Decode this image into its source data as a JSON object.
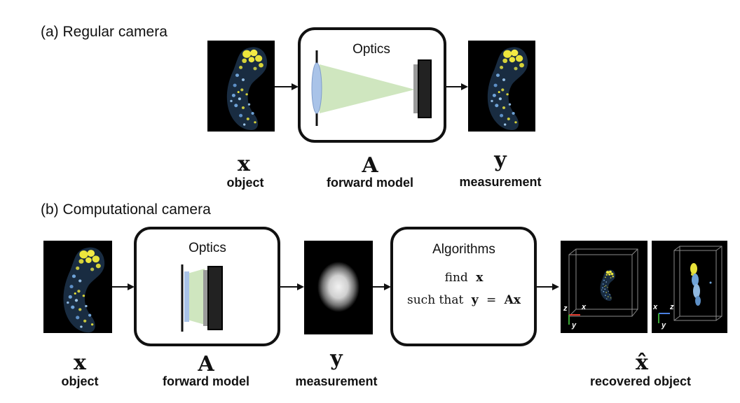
{
  "panel_a": {
    "heading": "(a) Regular camera",
    "optics_title": "Optics",
    "object_symbol": "x",
    "object_label": "object",
    "model_symbol": "A",
    "model_label": "forward model",
    "measurement_symbol": "y",
    "measurement_label": "measurement"
  },
  "panel_b": {
    "heading": "(b) Computational camera",
    "optics_title": "Optics",
    "algorithms_title": "Algorithms",
    "algo_line1_word": "find",
    "algo_line1_var": "x",
    "algo_line2_words": "such that",
    "algo_line2_lhs": "y",
    "algo_line2_eq": "=",
    "algo_line2_rhs": "Ax",
    "object_symbol": "x",
    "object_label": "object",
    "model_symbol": "A",
    "model_label": "forward model",
    "measurement_symbol": "y",
    "measurement_label": "measurement",
    "recovered_symbol": "x̂",
    "recovered_label": "recovered object",
    "axes_view1": [
      "z",
      "x",
      "y"
    ],
    "axes_view2": [
      "x",
      "z",
      "y"
    ]
  },
  "colors": {
    "arrow": "#111111",
    "box_border": "#111111",
    "lens": "#a9c3e8",
    "light_cone": "#cfe6bf",
    "sensor": "#333333",
    "image_bg": "#000000",
    "fluorescence_yellow": "#e8e23a",
    "fluorescence_blue": "#6fa3d8",
    "axis_red": "#e23b2e",
    "axis_green": "#3aa835",
    "axis_blue": "#4a7fe0"
  }
}
